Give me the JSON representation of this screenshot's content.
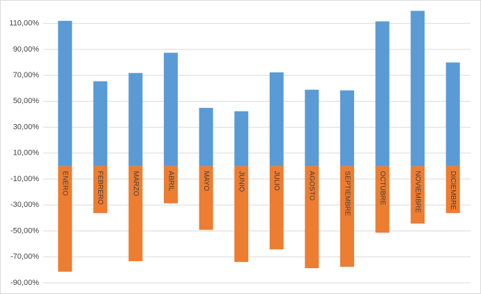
{
  "chart_data": {
    "type": "bar",
    "categories": [
      "ENERO",
      "FEBRERO",
      "MARZO",
      "ABRIL",
      "MAYO",
      "JUNIO",
      "JULIO",
      "AGOSTO",
      "SEPTIEMBRE",
      "OCTUBRE",
      "NOVIEMBRE",
      "DICIEMBRE"
    ],
    "series": [
      {
        "color": "#5b9bd5",
        "values": [
          112,
          65.4,
          71.8,
          87.4,
          44.9,
          42.3,
          72.3,
          58.9,
          58.4,
          111.6,
          119.7,
          79.9
        ]
      },
      {
        "color": "#ed7d31",
        "values": [
          -81.4,
          -36.2,
          -73.3,
          -28.7,
          -49.1,
          -73.9,
          -64.2,
          -78.7,
          -77.6,
          -51.3,
          -44.3,
          -36.2
        ]
      }
    ],
    "ylim": [
      -90,
      120
    ],
    "yticks": [
      {
        "value": -90,
        "label": "-90,00%"
      },
      {
        "value": -70,
        "label": "-70,00%"
      },
      {
        "value": -50,
        "label": "-50,00%"
      },
      {
        "value": -30,
        "label": "-30,00%"
      },
      {
        "value": -10,
        "label": "-10,00%"
      },
      {
        "value": 10,
        "label": "10,00%"
      },
      {
        "value": 30,
        "label": "30,00%"
      },
      {
        "value": 50,
        "label": "50,00%"
      },
      {
        "value": 70,
        "label": "70,00%"
      },
      {
        "value": 90,
        "label": "90,00%"
      },
      {
        "value": 110,
        "label": "110,00%"
      }
    ],
    "grid": true
  }
}
